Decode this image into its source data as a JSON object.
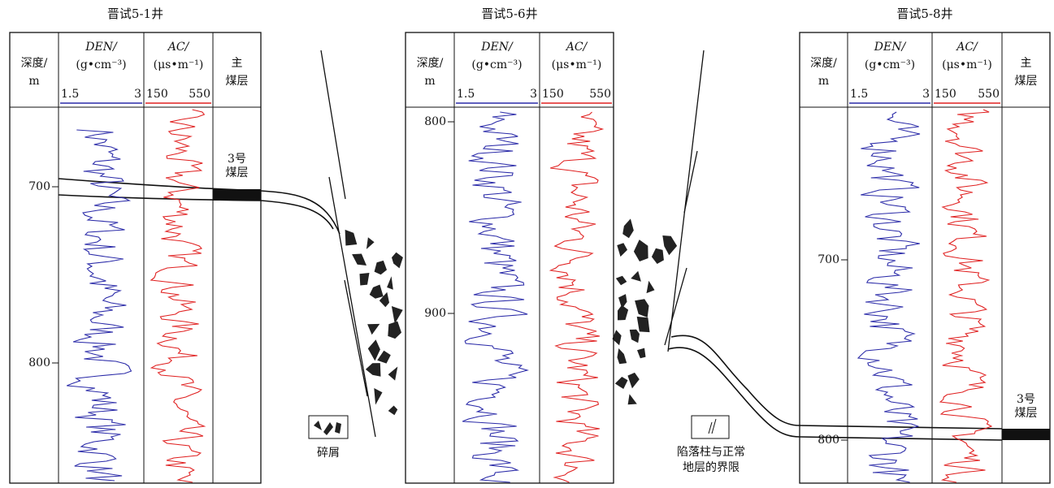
{
  "wells": [
    {
      "title": "晋试5-1井",
      "depth_header": "深度/",
      "depth_unit": "m",
      "den_header": "DEN/",
      "den_unit": "(g•cm⁻³)",
      "ac_header": "AC/",
      "ac_unit": "(μs•m⁻¹)",
      "coal_header": [
        "主",
        "煤层"
      ],
      "den_scale": [
        "1.5",
        "3"
      ],
      "ac_scale": [
        "150",
        "550"
      ],
      "depth_ticks": [
        "700",
        "800"
      ],
      "coal_label": [
        "3号",
        "煤层"
      ]
    },
    {
      "title": "晋试5-6井",
      "depth_header": "深度/",
      "depth_unit": "m",
      "den_header": "DEN/",
      "den_unit": "(g•cm⁻³)",
      "ac_header": "AC/",
      "ac_unit": "(μs•m⁻¹)",
      "den_scale": [
        "1.5",
        "3"
      ],
      "ac_scale": [
        "150",
        "550"
      ],
      "depth_ticks": [
        "800",
        "900"
      ]
    },
    {
      "title": "晋试5-8井",
      "depth_header": "深度/",
      "depth_unit": "m",
      "den_header": "DEN/",
      "den_unit": "(g•cm⁻³)",
      "ac_header": "AC/",
      "ac_unit": "(μs•m⁻¹)",
      "coal_header": [
        "主",
        "煤层"
      ],
      "den_scale": [
        "1.5",
        "3"
      ],
      "ac_scale": [
        "150",
        "550"
      ],
      "depth_ticks": [
        "700",
        "800"
      ],
      "coal_label": [
        "3号",
        "煤层"
      ]
    }
  ],
  "legend": [
    {
      "label": [
        "碎屑"
      ]
    },
    {
      "label": [
        "陷落柱与正常",
        "地层的界限"
      ]
    }
  ]
}
